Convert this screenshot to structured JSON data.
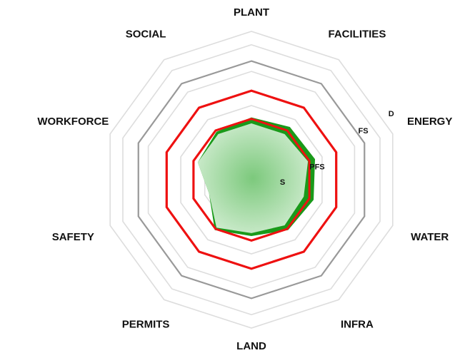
{
  "chart_data": {
    "type": "radar",
    "categories": [
      "PLANT",
      "FACILITIES",
      "ENERGY",
      "WATER",
      "INFRA",
      "LAND",
      "PERMITS",
      "SAFETY",
      "WORKFORCE",
      "SOCIAL"
    ],
    "rlim": [
      0,
      100
    ],
    "rticks": [
      33,
      41,
      50,
      60,
      73,
      80,
      91,
      100
    ],
    "ring_colors": [
      "#dddddd",
      "#ee1111",
      "#dddddd",
      "#ee1111",
      "#dddddd",
      "#999999",
      "#dddddd",
      "#dddddd"
    ],
    "stage_labels": [
      {
        "label": "D",
        "value": 104
      },
      {
        "label": "FS",
        "value": 82
      },
      {
        "label": "PFS",
        "value": 45
      },
      {
        "label": "S",
        "value": 21
      }
    ],
    "series": [
      {
        "color": "#1a9a1a",
        "values": [
          42,
          44,
          45,
          44,
          42,
          38,
          42,
          30,
          38,
          40
        ]
      },
      {
        "color": "#8fd48f",
        "values": [
          38,
          38,
          40,
          37,
          38,
          36,
          40,
          30,
          38,
          38
        ]
      }
    ]
  }
}
